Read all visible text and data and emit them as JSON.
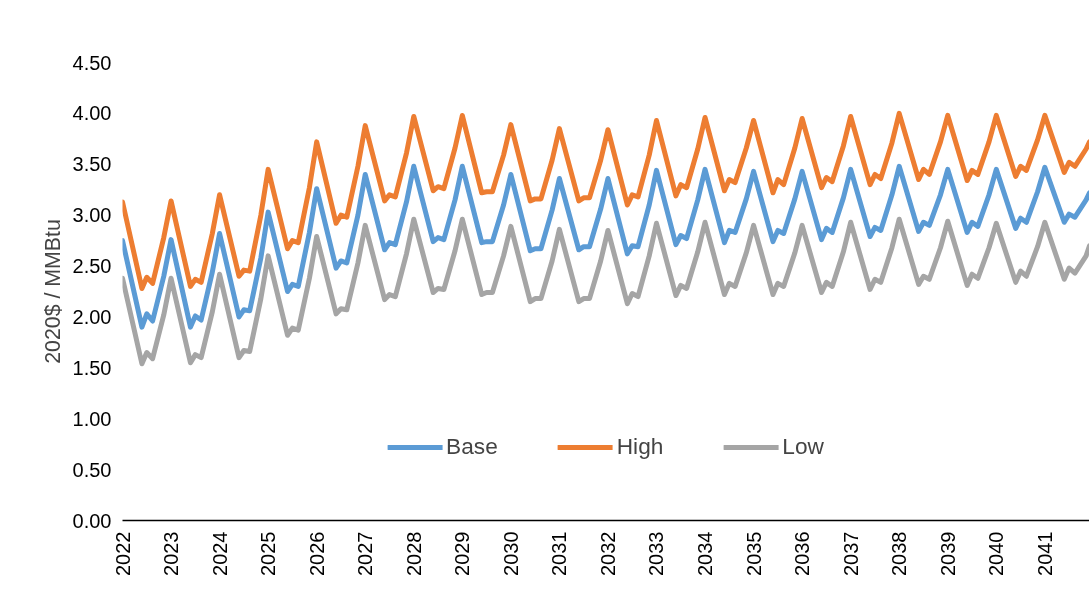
{
  "chart_data": {
    "type": "line",
    "ylabel": "2020$ / MMBtu",
    "x": [
      2022,
      2022.4,
      2022.5,
      2022.62,
      2022.85,
      2023,
      2023.4,
      2023.5,
      2023.62,
      2023.85,
      2024,
      2024.4,
      2024.5,
      2024.62,
      2024.85,
      2025,
      2025.4,
      2025.5,
      2025.62,
      2025.85,
      2026,
      2026.4,
      2026.5,
      2026.62,
      2026.85,
      2027,
      2027.4,
      2027.5,
      2027.62,
      2027.85,
      2028,
      2028.4,
      2028.5,
      2028.62,
      2028.85,
      2029,
      2029.4,
      2029.5,
      2029.62,
      2029.85,
      2030,
      2030.4,
      2030.5,
      2030.62,
      2030.85,
      2031,
      2031.4,
      2031.5,
      2031.62,
      2031.85,
      2032,
      2032.4,
      2032.5,
      2032.62,
      2032.85,
      2033,
      2033.4,
      2033.5,
      2033.62,
      2033.85,
      2034,
      2034.4,
      2034.5,
      2034.62,
      2034.85,
      2035,
      2035.4,
      2035.5,
      2035.62,
      2035.85,
      2036,
      2036.4,
      2036.5,
      2036.62,
      2036.85,
      2037,
      2037.4,
      2037.5,
      2037.62,
      2037.85,
      2038,
      2038.4,
      2038.5,
      2038.62,
      2038.85,
      2039,
      2039.4,
      2039.5,
      2039.62,
      2039.85,
      2040,
      2040.4,
      2040.5,
      2040.62,
      2040.85,
      2041,
      2041.4,
      2041.5,
      2041.62,
      2041.85,
      2041.92
    ],
    "series": [
      {
        "name": "Base",
        "color": "#5b9bd5",
        "values": [
          2.75,
          1.9,
          2.03,
          1.96,
          2.4,
          2.76,
          1.9,
          2.01,
          1.97,
          2.44,
          2.82,
          2.0,
          2.07,
          2.06,
          2.58,
          3.03,
          2.25,
          2.32,
          2.3,
          2.83,
          3.26,
          2.48,
          2.55,
          2.53,
          3.0,
          3.4,
          2.66,
          2.73,
          2.71,
          3.13,
          3.48,
          2.74,
          2.78,
          2.76,
          3.15,
          3.48,
          2.73,
          2.74,
          2.74,
          3.1,
          3.4,
          2.65,
          2.67,
          2.67,
          3.05,
          3.36,
          2.66,
          2.69,
          2.69,
          3.06,
          3.36,
          2.62,
          2.7,
          2.69,
          3.1,
          3.44,
          2.71,
          2.8,
          2.77,
          3.15,
          3.45,
          2.73,
          2.85,
          2.83,
          3.16,
          3.43,
          2.74,
          2.85,
          2.82,
          3.16,
          3.43,
          2.76,
          2.87,
          2.83,
          3.17,
          3.45,
          2.79,
          2.88,
          2.85,
          3.2,
          3.48,
          2.84,
          2.93,
          2.9,
          3.2,
          3.45,
          2.83,
          2.93,
          2.89,
          3.2,
          3.45,
          2.87,
          2.97,
          2.93,
          3.23,
          3.47,
          2.93,
          3.01,
          2.98,
          3.15,
          3.22
        ]
      },
      {
        "name": "High",
        "color": "#ed7d31",
        "values": [
          3.13,
          2.28,
          2.39,
          2.33,
          2.78,
          3.14,
          2.3,
          2.37,
          2.34,
          2.82,
          3.2,
          2.4,
          2.46,
          2.45,
          3.0,
          3.45,
          2.67,
          2.75,
          2.73,
          3.27,
          3.72,
          2.92,
          3.0,
          2.98,
          3.48,
          3.88,
          3.14,
          3.2,
          3.18,
          3.61,
          3.97,
          3.24,
          3.28,
          3.26,
          3.66,
          3.98,
          3.22,
          3.23,
          3.23,
          3.59,
          3.89,
          3.14,
          3.16,
          3.16,
          3.54,
          3.85,
          3.14,
          3.17,
          3.17,
          3.54,
          3.84,
          3.1,
          3.2,
          3.18,
          3.59,
          3.93,
          3.19,
          3.3,
          3.27,
          3.65,
          3.96,
          3.24,
          3.35,
          3.32,
          3.66,
          3.93,
          3.22,
          3.35,
          3.3,
          3.66,
          3.95,
          3.27,
          3.37,
          3.33,
          3.68,
          3.97,
          3.3,
          3.4,
          3.36,
          3.71,
          4.0,
          3.35,
          3.45,
          3.4,
          3.72,
          3.98,
          3.34,
          3.44,
          3.4,
          3.72,
          3.98,
          3.38,
          3.48,
          3.44,
          3.74,
          3.98,
          3.42,
          3.52,
          3.48,
          3.65,
          3.72
        ]
      },
      {
        "name": "Low",
        "color": "#a5a5a5",
        "values": [
          2.38,
          1.54,
          1.65,
          1.59,
          2.02,
          2.38,
          1.55,
          1.63,
          1.6,
          2.05,
          2.42,
          1.6,
          1.67,
          1.66,
          2.18,
          2.6,
          1.82,
          1.89,
          1.87,
          2.38,
          2.79,
          2.03,
          2.08,
          2.07,
          2.53,
          2.9,
          2.17,
          2.22,
          2.2,
          2.62,
          2.96,
          2.24,
          2.28,
          2.27,
          2.65,
          2.96,
          2.22,
          2.24,
          2.24,
          2.6,
          2.89,
          2.15,
          2.18,
          2.18,
          2.55,
          2.86,
          2.15,
          2.18,
          2.18,
          2.55,
          2.85,
          2.13,
          2.23,
          2.2,
          2.6,
          2.92,
          2.21,
          2.31,
          2.28,
          2.64,
          2.93,
          2.22,
          2.33,
          2.3,
          2.63,
          2.9,
          2.22,
          2.33,
          2.3,
          2.63,
          2.9,
          2.24,
          2.34,
          2.3,
          2.64,
          2.93,
          2.27,
          2.37,
          2.34,
          2.68,
          2.96,
          2.32,
          2.4,
          2.37,
          2.68,
          2.94,
          2.31,
          2.42,
          2.38,
          2.68,
          2.92,
          2.34,
          2.45,
          2.4,
          2.69,
          2.93,
          2.37,
          2.48,
          2.43,
          2.6,
          2.7
        ]
      }
    ],
    "xlim": [
      2022,
      2041.92
    ],
    "xticks": [
      2022,
      2023,
      2024,
      2025,
      2026,
      2027,
      2028,
      2029,
      2030,
      2031,
      2032,
      2033,
      2034,
      2035,
      2036,
      2037,
      2038,
      2039,
      2040,
      2041
    ],
    "ylim": [
      0,
      4.5
    ],
    "yticks": [
      {
        "value": 0,
        "label": "0.00"
      },
      {
        "value": 0.5,
        "label": "0.50"
      },
      {
        "value": 1,
        "label": "1.00"
      },
      {
        "value": 1.5,
        "label": "1.50"
      },
      {
        "value": 2,
        "label": "2.00"
      },
      {
        "value": 2.5,
        "label": "2.50"
      },
      {
        "value": 3,
        "label": "3.00"
      },
      {
        "value": 3.5,
        "label": "3.50"
      },
      {
        "value": 4,
        "label": "4.00"
      },
      {
        "value": 4.5,
        "label": "4.50"
      }
    ],
    "grid": false,
    "legend": "bottom",
    "marker": "none",
    "line_style": "solid"
  }
}
